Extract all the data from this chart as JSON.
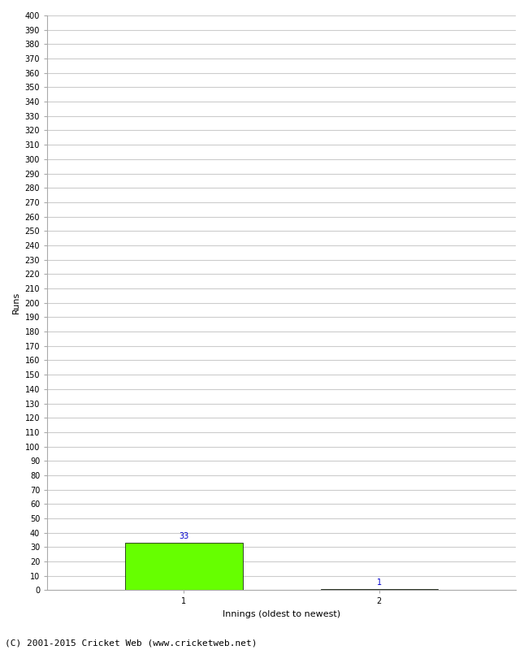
{
  "xlabel": "Innings (oldest to newest)",
  "ylabel": "Runs",
  "categories": [
    "1",
    "2"
  ],
  "values": [
    33,
    1
  ],
  "bar_colors": [
    "#66ff00",
    "#336600"
  ],
  "ylim": [
    0,
    400
  ],
  "ytick_step": 10,
  "value_labels": [
    33,
    1
  ],
  "value_label_color": "#0000cc",
  "footer": "(C) 2001-2015 Cricket Web (www.cricketweb.net)",
  "background_color": "#ffffff",
  "grid_color": "#cccccc",
  "bar_width": 0.6,
  "bar_positions": [
    1,
    2
  ],
  "xlim": [
    0.3,
    2.7
  ],
  "title_fontsize": 11,
  "axis_fontsize": 8,
  "tick_fontsize": 7,
  "footer_fontsize": 8
}
